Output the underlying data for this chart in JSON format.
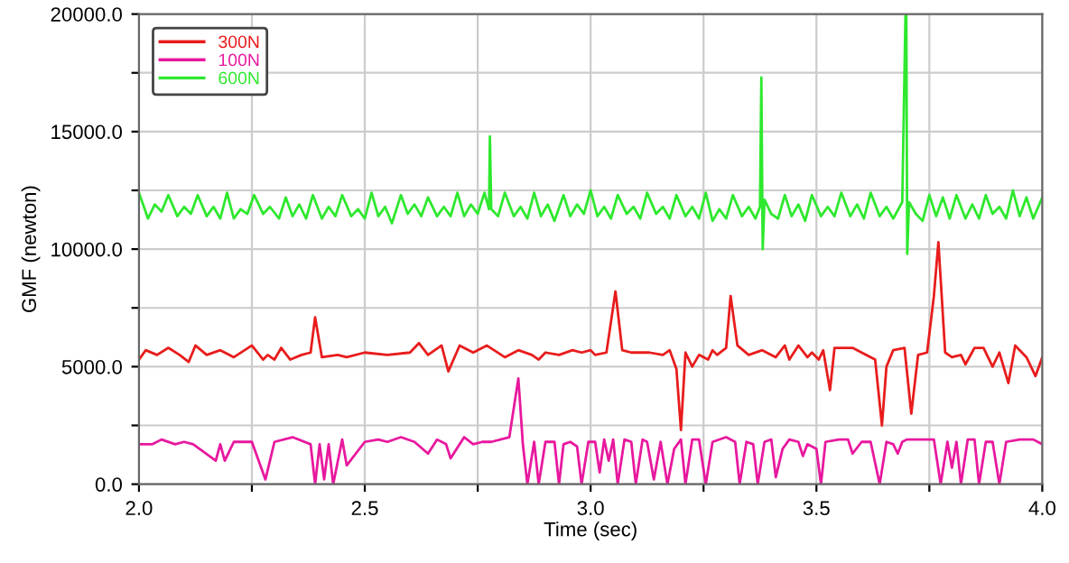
{
  "chart_data": {
    "type": "line",
    "xlabel": "Time (sec)",
    "ylabel": "GMF (newton)",
    "xlim": [
      2.0,
      4.0
    ],
    "ylim": [
      0,
      20000
    ],
    "xticks": [
      {
        "value": 2.0,
        "label": "2.0"
      },
      {
        "value": 2.25,
        "label": null
      },
      {
        "value": 2.5,
        "label": "2.5"
      },
      {
        "value": 2.75,
        "label": null
      },
      {
        "value": 3.0,
        "label": "3.0"
      },
      {
        "value": 3.25,
        "label": null
      },
      {
        "value": 3.5,
        "label": "3.5"
      },
      {
        "value": 3.75,
        "label": null
      },
      {
        "value": 4.0,
        "label": "4.0"
      }
    ],
    "yticks": [
      {
        "value": 0,
        "label": "0.0"
      },
      {
        "value": 2500,
        "label": null
      },
      {
        "value": 5000,
        "label": "5000.0"
      },
      {
        "value": 7500,
        "label": null
      },
      {
        "value": 10000,
        "label": "10000.0"
      },
      {
        "value": 12500,
        "label": null
      },
      {
        "value": 15000,
        "label": "15000.0"
      },
      {
        "value": 17500,
        "label": null
      },
      {
        "value": 20000,
        "label": "20000.0"
      }
    ],
    "grid": true,
    "legend": "top left",
    "marker": "none",
    "line_style": "solid",
    "series": [
      {
        "name": "300N",
        "color": "#e81c1c",
        "x": [
          2.0,
          2.015,
          2.04,
          2.065,
          2.09,
          2.11,
          2.125,
          2.15,
          2.18,
          2.21,
          2.25,
          2.275,
          2.285,
          2.3,
          2.315,
          2.335,
          2.36,
          2.38,
          2.39,
          2.405,
          2.44,
          2.46,
          2.5,
          2.55,
          2.6,
          2.62,
          2.64,
          2.67,
          2.685,
          2.71,
          2.74,
          2.77,
          2.81,
          2.84,
          2.87,
          2.885,
          2.9,
          2.93,
          2.96,
          2.98,
          3.0,
          3.01,
          3.035,
          3.045,
          3.055,
          3.07,
          3.09,
          3.13,
          3.16,
          3.175,
          3.19,
          3.2,
          3.21,
          3.225,
          3.24,
          3.26,
          3.27,
          3.28,
          3.3,
          3.31,
          3.325,
          3.35,
          3.38,
          3.41,
          3.43,
          3.44,
          3.46,
          3.48,
          3.49,
          3.505,
          3.515,
          3.53,
          3.54,
          3.58,
          3.6,
          3.63,
          3.645,
          3.655,
          3.67,
          3.695,
          3.71,
          3.725,
          3.745,
          3.76,
          3.77,
          3.785,
          3.8,
          3.82,
          3.83,
          3.85,
          3.87,
          3.89,
          3.905,
          3.925,
          3.94,
          3.965,
          3.985,
          4.0
        ],
        "values": [
          5300,
          5700,
          5500,
          5800,
          5500,
          5200,
          5900,
          5500,
          5700,
          5400,
          5900,
          5300,
          5500,
          5300,
          5800,
          5300,
          5500,
          5600,
          7100,
          5400,
          5500,
          5400,
          5600,
          5500,
          5600,
          6000,
          5500,
          5900,
          4800,
          5900,
          5600,
          5900,
          5400,
          5700,
          5500,
          5300,
          5600,
          5500,
          5700,
          5600,
          5700,
          5500,
          5600,
          6900,
          8200,
          5700,
          5600,
          5600,
          5500,
          5700,
          4900,
          2300,
          5600,
          5000,
          5500,
          5300,
          5700,
          5500,
          5800,
          8000,
          5900,
          5500,
          5700,
          5400,
          5900,
          5300,
          5900,
          5400,
          5600,
          5300,
          5700,
          4000,
          5800,
          5800,
          5600,
          5300,
          2500,
          5000,
          5700,
          5800,
          3000,
          5500,
          5600,
          8000,
          10300,
          5600,
          5400,
          5500,
          5100,
          5800,
          5800,
          5000,
          5600,
          4300,
          5900,
          5400,
          4600,
          5400
        ]
      },
      {
        "name": "100N",
        "color": "#e8189e",
        "x": [
          2.0,
          2.03,
          2.05,
          2.08,
          2.1,
          2.12,
          2.17,
          2.18,
          2.19,
          2.21,
          2.25,
          2.28,
          2.3,
          2.34,
          2.38,
          2.39,
          2.4,
          2.41,
          2.42,
          2.43,
          2.45,
          2.46,
          2.5,
          2.53,
          2.55,
          2.58,
          2.61,
          2.64,
          2.66,
          2.68,
          2.69,
          2.72,
          2.74,
          2.76,
          2.78,
          2.82,
          2.84,
          2.85,
          2.86,
          2.875,
          2.885,
          2.9,
          2.92,
          2.93,
          2.94,
          2.955,
          2.97,
          2.98,
          2.995,
          3.01,
          3.02,
          3.03,
          3.04,
          3.05,
          3.06,
          3.075,
          3.09,
          3.1,
          3.115,
          3.125,
          3.14,
          3.155,
          3.17,
          3.185,
          3.2,
          3.21,
          3.225,
          3.24,
          3.255,
          3.27,
          3.3,
          3.32,
          3.33,
          3.345,
          3.36,
          3.37,
          3.385,
          3.4,
          3.41,
          3.425,
          3.44,
          3.46,
          3.47,
          3.48,
          3.5,
          3.51,
          3.52,
          3.55,
          3.57,
          3.58,
          3.6,
          3.62,
          3.64,
          3.655,
          3.67,
          3.68,
          3.69,
          3.7,
          3.74,
          3.76,
          3.775,
          3.79,
          3.8,
          3.81,
          3.82,
          3.835,
          3.85,
          3.86,
          3.875,
          3.89,
          3.905,
          3.92,
          3.95,
          3.98,
          4.0
        ],
        "values": [
          1700,
          1700,
          1900,
          1700,
          1800,
          1700,
          1000,
          1700,
          1000,
          1800,
          1800,
          200,
          1800,
          2000,
          1700,
          0,
          1700,
          200,
          1700,
          0,
          1900,
          800,
          1800,
          1900,
          1800,
          2000,
          1800,
          1300,
          1900,
          1700,
          1100,
          2000,
          1700,
          1800,
          1800,
          2000,
          4500,
          1700,
          0,
          1800,
          0,
          1800,
          1800,
          0,
          1700,
          1800,
          1600,
          0,
          1800,
          1800,
          500,
          1900,
          1000,
          1900,
          0,
          1900,
          1800,
          0,
          1900,
          1800,
          200,
          1800,
          0,
          1500,
          1900,
          0,
          1900,
          1900,
          0,
          1800,
          2000,
          1800,
          0,
          1800,
          1700,
          0,
          1800,
          1900,
          300,
          1500,
          1900,
          1800,
          1200,
          1700,
          1500,
          0,
          1800,
          1900,
          1900,
          1300,
          1800,
          1800,
          0,
          1800,
          1700,
          1300,
          1800,
          1900,
          1900,
          1900,
          0,
          1800,
          700,
          1800,
          0,
          1900,
          1900,
          0,
          1800,
          1800,
          0,
          1800,
          1900,
          1900,
          1700
        ]
      },
      {
        "name": "600N",
        "color": "#2ee82e",
        "x": [
          2.0,
          2.02,
          2.035,
          2.05,
          2.065,
          2.085,
          2.1,
          2.115,
          2.13,
          2.15,
          2.165,
          2.18,
          2.195,
          2.21,
          2.225,
          2.24,
          2.255,
          2.275,
          2.29,
          2.31,
          2.325,
          2.34,
          2.355,
          2.37,
          2.385,
          2.405,
          2.42,
          2.435,
          2.45,
          2.47,
          2.485,
          2.5,
          2.515,
          2.53,
          2.545,
          2.56,
          2.58,
          2.595,
          2.61,
          2.625,
          2.64,
          2.66,
          2.675,
          2.69,
          2.705,
          2.72,
          2.735,
          2.75,
          2.765,
          2.775,
          2.777,
          2.78,
          2.795,
          2.81,
          2.83,
          2.845,
          2.86,
          2.875,
          2.89,
          2.905,
          2.92,
          2.94,
          2.955,
          2.97,
          2.985,
          3.0,
          3.015,
          3.03,
          3.045,
          3.06,
          3.08,
          3.095,
          3.11,
          3.125,
          3.145,
          3.16,
          3.175,
          3.19,
          3.21,
          3.225,
          3.24,
          3.255,
          3.27,
          3.285,
          3.3,
          3.315,
          3.335,
          3.35,
          3.365,
          3.375,
          3.378,
          3.381,
          3.385,
          3.4,
          3.415,
          3.43,
          3.445,
          3.46,
          3.475,
          3.49,
          3.51,
          3.525,
          3.54,
          3.555,
          3.575,
          3.59,
          3.605,
          3.62,
          3.64,
          3.655,
          3.67,
          3.69,
          3.697,
          3.699,
          3.701,
          3.705,
          3.72,
          3.735,
          3.75,
          3.765,
          3.78,
          3.795,
          3.81,
          3.83,
          3.845,
          3.86,
          3.875,
          3.89,
          3.905,
          3.92,
          3.935,
          3.95,
          3.965,
          3.98,
          4.0
        ],
        "values": [
          12400,
          11300,
          11900,
          11600,
          12300,
          11400,
          11800,
          11500,
          12300,
          11400,
          11800,
          11300,
          12400,
          11300,
          11700,
          11500,
          12300,
          11500,
          11800,
          11300,
          12200,
          11400,
          11900,
          11300,
          12300,
          11300,
          11800,
          11400,
          12300,
          11400,
          11700,
          11300,
          12400,
          11400,
          11800,
          11100,
          12300,
          11500,
          11900,
          11400,
          12200,
          11400,
          11800,
          11400,
          12400,
          11400,
          11900,
          11500,
          12400,
          11700,
          14800,
          11700,
          11400,
          12400,
          11400,
          11800,
          11300,
          12400,
          11400,
          11900,
          11200,
          12300,
          11400,
          11900,
          11500,
          12500,
          11400,
          11800,
          11300,
          12300,
          11500,
          11800,
          11300,
          12400,
          11500,
          11800,
          11300,
          12300,
          11400,
          11800,
          11300,
          12400,
          11200,
          11700,
          11300,
          12300,
          11400,
          11800,
          11300,
          11800,
          17300,
          10000,
          12100,
          11500,
          11300,
          12300,
          11400,
          11900,
          11200,
          12300,
          11400,
          11800,
          11400,
          12400,
          11400,
          11900,
          11300,
          12400,
          11400,
          11800,
          11300,
          12000,
          19900,
          20000,
          9800,
          12000,
          11500,
          11200,
          12300,
          11400,
          12200,
          11300,
          12300,
          11300,
          11900,
          11300,
          12300,
          11500,
          11800,
          11300,
          12500,
          11400,
          12200,
          11300,
          12200
        ]
      }
    ]
  }
}
